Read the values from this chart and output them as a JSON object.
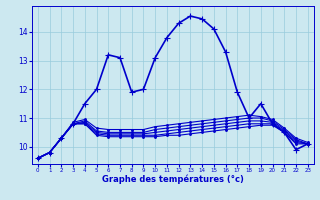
{
  "xlabel": "Graphe des températures (°c)",
  "background_color": "#cce8f0",
  "line_color": "#0000cc",
  "grid_color": "#99ccdd",
  "xlim": [
    -0.5,
    23.5
  ],
  "ylim": [
    9.4,
    14.9
  ],
  "yticks": [
    10,
    11,
    12,
    13,
    14
  ],
  "xticks": [
    0,
    1,
    2,
    3,
    4,
    5,
    6,
    7,
    8,
    9,
    10,
    11,
    12,
    13,
    14,
    15,
    16,
    17,
    18,
    19,
    20,
    21,
    22,
    23
  ],
  "series": [
    {
      "x": [
        0,
        1,
        2,
        3,
        4,
        5,
        6,
        7,
        8,
        9,
        10,
        11,
        12,
        13,
        14,
        15,
        16,
        17,
        18,
        19,
        20,
        21,
        22,
        23
      ],
      "y": [
        9.6,
        9.8,
        10.3,
        10.8,
        11.5,
        12.0,
        13.2,
        13.1,
        11.9,
        12.0,
        13.1,
        13.8,
        14.3,
        14.55,
        14.45,
        14.1,
        13.3,
        11.9,
        11.0,
        11.5,
        10.8,
        10.5,
        9.9,
        10.1
      ],
      "marker": "+",
      "lw": 1.2
    },
    {
      "x": [
        0,
        1,
        2,
        3,
        4,
        5,
        6,
        7,
        8,
        9,
        10,
        11,
        12,
        13,
        14,
        15,
        16,
        17,
        18,
        19,
        20,
        21,
        22,
        23
      ],
      "y": [
        9.6,
        9.8,
        10.3,
        10.8,
        10.8,
        10.4,
        10.35,
        10.35,
        10.35,
        10.35,
        10.35,
        10.4,
        10.4,
        10.45,
        10.5,
        10.55,
        10.6,
        10.65,
        10.7,
        10.75,
        10.75,
        10.5,
        10.1,
        10.1
      ],
      "marker": ".",
      "lw": 0.8
    },
    {
      "x": [
        0,
        1,
        2,
        3,
        4,
        5,
        6,
        7,
        8,
        9,
        10,
        11,
        12,
        13,
        14,
        15,
        16,
        17,
        18,
        19,
        20,
        21,
        22,
        23
      ],
      "y": [
        9.6,
        9.8,
        10.3,
        10.8,
        10.8,
        10.45,
        10.4,
        10.4,
        10.4,
        10.4,
        10.4,
        10.45,
        10.5,
        10.55,
        10.6,
        10.65,
        10.7,
        10.75,
        10.8,
        10.8,
        10.8,
        10.5,
        10.15,
        10.1
      ],
      "marker": ".",
      "lw": 0.8
    },
    {
      "x": [
        0,
        1,
        2,
        3,
        4,
        5,
        6,
        7,
        8,
        9,
        10,
        11,
        12,
        13,
        14,
        15,
        16,
        17,
        18,
        19,
        20,
        21,
        22,
        23
      ],
      "y": [
        9.6,
        9.8,
        10.3,
        10.8,
        10.85,
        10.5,
        10.45,
        10.45,
        10.45,
        10.45,
        10.5,
        10.55,
        10.6,
        10.65,
        10.7,
        10.75,
        10.8,
        10.85,
        10.9,
        10.9,
        10.85,
        10.55,
        10.2,
        10.1
      ],
      "marker": ".",
      "lw": 0.8
    },
    {
      "x": [
        0,
        1,
        2,
        3,
        4,
        5,
        6,
        7,
        8,
        9,
        10,
        11,
        12,
        13,
        14,
        15,
        16,
        17,
        18,
        19,
        20,
        21,
        22,
        23
      ],
      "y": [
        9.6,
        9.8,
        10.3,
        10.8,
        10.9,
        10.55,
        10.5,
        10.5,
        10.5,
        10.5,
        10.6,
        10.65,
        10.7,
        10.75,
        10.8,
        10.85,
        10.9,
        10.95,
        11.0,
        11.0,
        10.9,
        10.6,
        10.25,
        10.1
      ],
      "marker": ".",
      "lw": 0.8
    },
    {
      "x": [
        0,
        1,
        2,
        3,
        4,
        5,
        6,
        7,
        8,
        9,
        10,
        11,
        12,
        13,
        14,
        15,
        16,
        17,
        18,
        19,
        20,
        21,
        22,
        23
      ],
      "y": [
        9.6,
        9.8,
        10.3,
        10.85,
        10.95,
        10.65,
        10.6,
        10.6,
        10.6,
        10.6,
        10.7,
        10.75,
        10.8,
        10.85,
        10.9,
        10.95,
        11.0,
        11.05,
        11.1,
        11.05,
        10.95,
        10.65,
        10.3,
        10.15
      ],
      "marker": ".",
      "lw": 0.8
    }
  ]
}
